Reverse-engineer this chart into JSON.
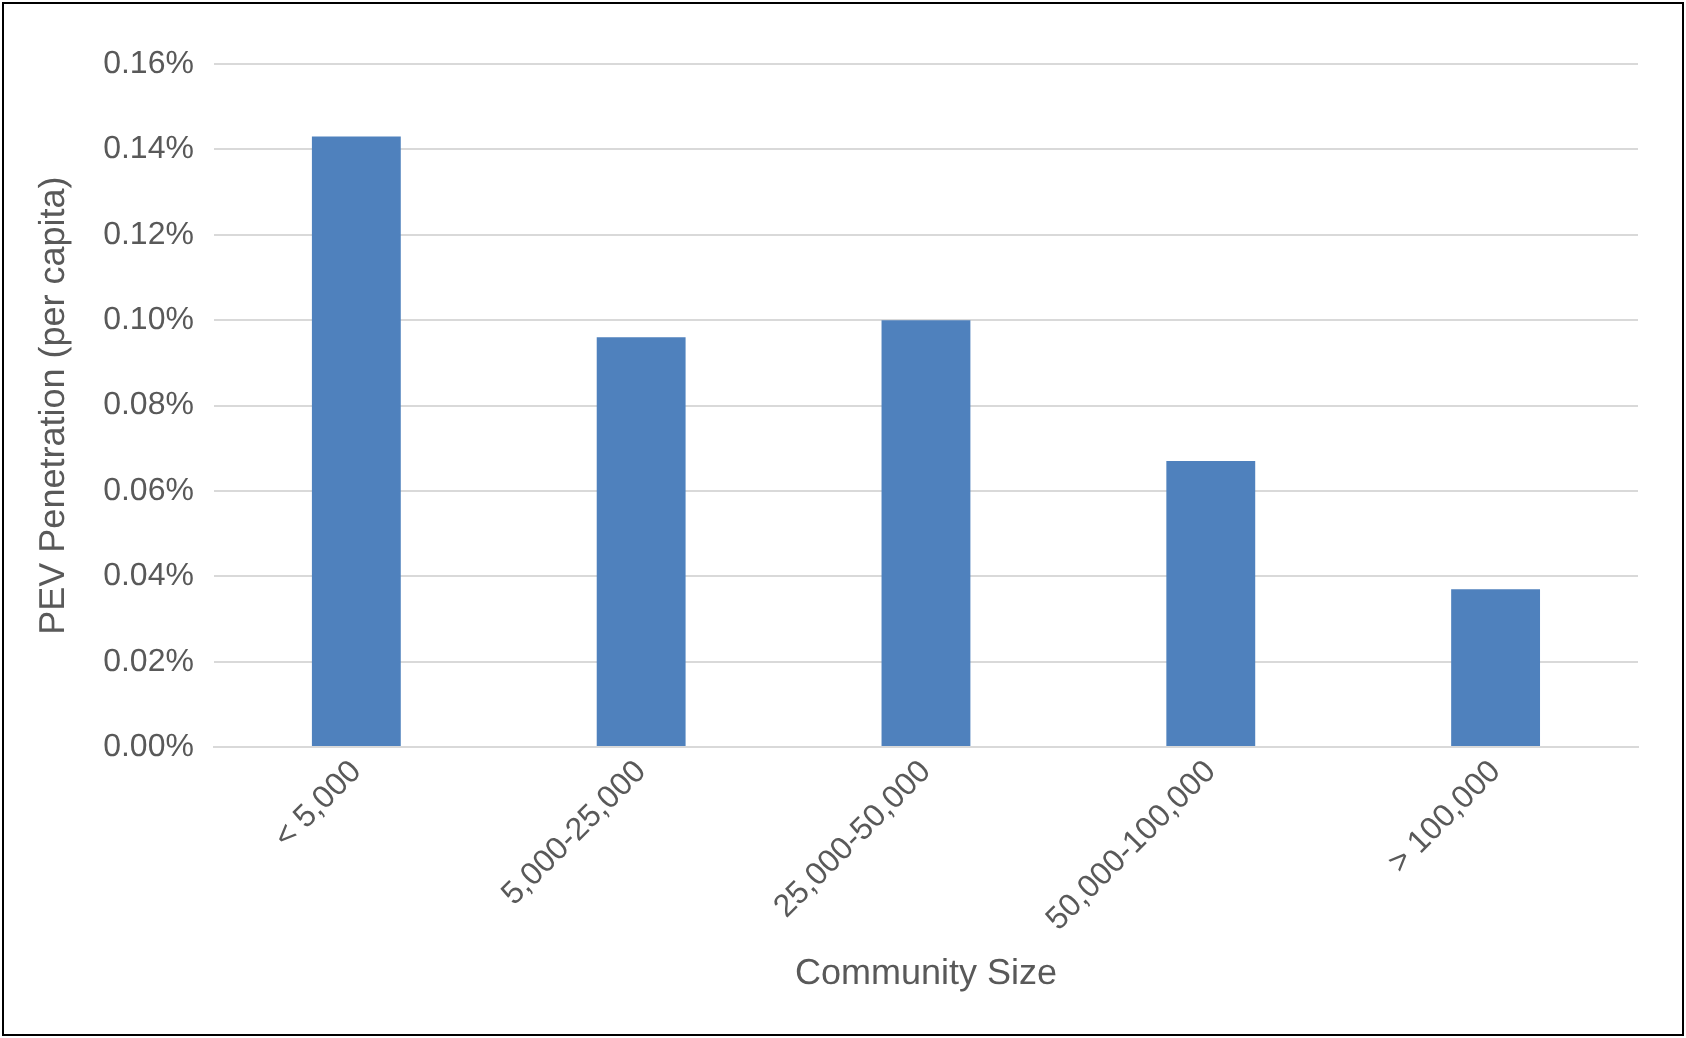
{
  "chart_data": {
    "type": "bar",
    "xlabel": "Community Size",
    "ylabel": "PEV Penetration (per capita)",
    "categories": [
      "< 5,000",
      "5,000-25,000",
      "25,000-50,000",
      "50,000-100,000",
      "> 100,000"
    ],
    "values": [
      0.143,
      0.096,
      0.1,
      0.067,
      0.037
    ],
    "color": "#4f81bd",
    "ylim": [
      0,
      0.16
    ],
    "yticks": [
      {
        "value": 0,
        "label": "0.00%"
      },
      {
        "value": 0.02,
        "label": "0.02%"
      },
      {
        "value": 0.04,
        "label": "0.04%"
      },
      {
        "value": 0.06,
        "label": "0.06%"
      },
      {
        "value": 0.08,
        "label": "0.08%"
      },
      {
        "value": 0.1,
        "label": "0.10%"
      },
      {
        "value": 0.12,
        "label": "0.12%"
      },
      {
        "value": 0.14,
        "label": "0.14%"
      },
      {
        "value": 0.16,
        "label": "0.16%"
      }
    ],
    "grid": "y",
    "legend": false
  }
}
